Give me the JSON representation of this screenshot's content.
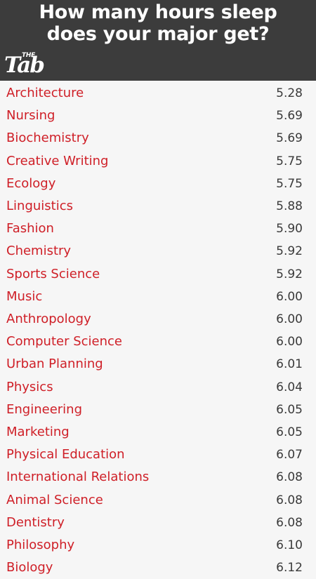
{
  "header": {
    "title_line1": "How many hours sleep",
    "title_line2": "does your major get?",
    "logo_small": "THE",
    "logo_big": "Tab"
  },
  "chart_data": {
    "type": "table",
    "title": "How many hours sleep does your major get?",
    "categories": [
      "Architecture",
      "Nursing",
      "Biochemistry",
      "Creative Writing",
      "Ecology",
      "Linguistics",
      "Fashion",
      "Chemistry",
      "Sports Science",
      "Music",
      "Anthropology",
      "Computer Science",
      "Urban Planning",
      "Physics",
      "Engineering",
      "Marketing",
      "Physical Education",
      "International Relations",
      "Animal Science",
      "Dentistry",
      "Philosophy",
      "Biology"
    ],
    "values": [
      "5.28",
      "5.69",
      "5.69",
      "5.75",
      "5.75",
      "5.88",
      "5.90",
      "5.92",
      "5.92",
      "6.00",
      "6.00",
      "6.00",
      "6.01",
      "6.04",
      "6.05",
      "6.05",
      "6.07",
      "6.08",
      "6.08",
      "6.08",
      "6.10",
      "6.12"
    ]
  },
  "colors": {
    "header_bg": "#3c3c3c",
    "label_text": "#cf1f27",
    "value_text": "#3a3a3a",
    "page_bg": "#f6f6f6"
  }
}
